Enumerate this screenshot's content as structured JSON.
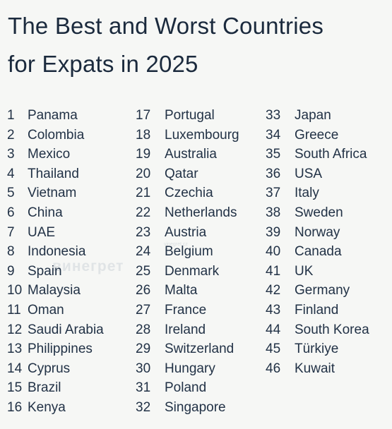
{
  "title": {
    "line1": "The Best and Worst Countries",
    "line2": "for Expats in 2025"
  },
  "watermark": {
    "text": "винегрет",
    "small": "vinegret.cz"
  },
  "rankings": [
    {
      "rank": "1",
      "country": "Panama"
    },
    {
      "rank": "2",
      "country": "Colombia"
    },
    {
      "rank": "3",
      "country": "Mexico"
    },
    {
      "rank": "4",
      "country": "Thailand"
    },
    {
      "rank": "5",
      "country": "Vietnam"
    },
    {
      "rank": "6",
      "country": "China"
    },
    {
      "rank": "7",
      "country": "UAE"
    },
    {
      "rank": "8",
      "country": "Indonesia"
    },
    {
      "rank": "9",
      "country": "Spain"
    },
    {
      "rank": "10",
      "country": "Malaysia"
    },
    {
      "rank": "11",
      "country": "Oman"
    },
    {
      "rank": "12",
      "country": "Saudi Arabia"
    },
    {
      "rank": "13",
      "country": "Philippines"
    },
    {
      "rank": "14",
      "country": "Cyprus"
    },
    {
      "rank": "15",
      "country": "Brazil"
    },
    {
      "rank": "16",
      "country": "Kenya"
    },
    {
      "rank": "17",
      "country": "Portugal"
    },
    {
      "rank": "18",
      "country": "Luxembourg"
    },
    {
      "rank": "19",
      "country": "Australia"
    },
    {
      "rank": "20",
      "country": "Qatar"
    },
    {
      "rank": "21",
      "country": "Czechia"
    },
    {
      "rank": "22",
      "country": "Netherlands"
    },
    {
      "rank": "23",
      "country": "Austria"
    },
    {
      "rank": "24",
      "country": "Belgium"
    },
    {
      "rank": "25",
      "country": "Denmark"
    },
    {
      "rank": "26",
      "country": "Malta"
    },
    {
      "rank": "27",
      "country": "France"
    },
    {
      "rank": "28",
      "country": "Ireland"
    },
    {
      "rank": "29",
      "country": "Switzerland"
    },
    {
      "rank": "30",
      "country": "Hungary"
    },
    {
      "rank": "31",
      "country": "Poland"
    },
    {
      "rank": "32",
      "country": "Singapore"
    },
    {
      "rank": "33",
      "country": "Japan"
    },
    {
      "rank": "34",
      "country": "Greece"
    },
    {
      "rank": "35",
      "country": "South Africa"
    },
    {
      "rank": "36",
      "country": "USA"
    },
    {
      "rank": "37",
      "country": "Italy"
    },
    {
      "rank": "38",
      "country": "Sweden"
    },
    {
      "rank": "39",
      "country": "Norway"
    },
    {
      "rank": "40",
      "country": "Canada"
    },
    {
      "rank": "41",
      "country": "UK"
    },
    {
      "rank": "42",
      "country": "Germany"
    },
    {
      "rank": "43",
      "country": "Finland"
    },
    {
      "rank": "44",
      "country": "South Korea"
    },
    {
      "rank": "45",
      "country": "Türkiye"
    },
    {
      "rank": "46",
      "country": "Kuwait"
    }
  ]
}
